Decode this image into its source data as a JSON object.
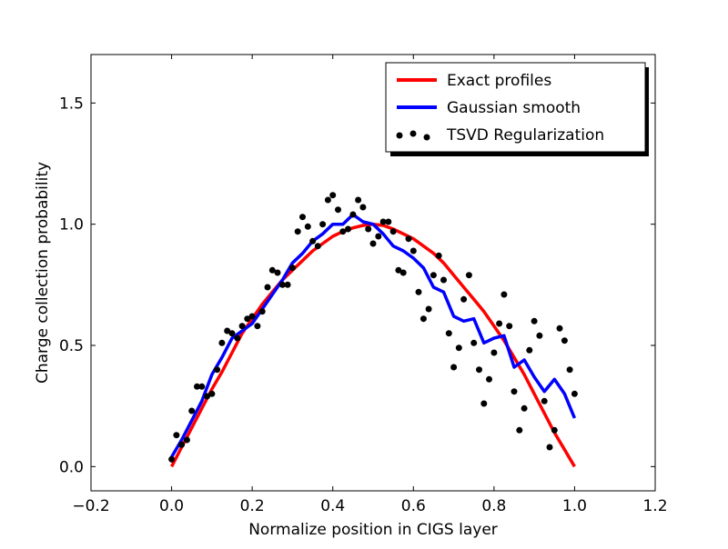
{
  "chart_data": {
    "type": "line",
    "xlabel": "Normalize position in CIGS layer",
    "ylabel": "Charge collection probability",
    "xlim": [
      -0.2,
      1.2
    ],
    "ylim": [
      -0.1,
      1.7
    ],
    "xticks": [
      -0.2,
      0.0,
      0.2,
      0.4,
      0.6,
      0.8,
      1.0,
      1.2
    ],
    "xtick_labels": [
      "−0.2",
      "0.0",
      "0.2",
      "0.4",
      "0.6",
      "0.8",
      "1.0",
      "1.2"
    ],
    "yticks": [
      0.0,
      0.5,
      1.0,
      1.5
    ],
    "ytick_labels": [
      "0.0",
      "0.5",
      "1.0",
      "1.5"
    ],
    "grid": false,
    "legend_position": "top-right",
    "series": [
      {
        "name": "Exact profiles",
        "kind": "line",
        "color": "#ff0000",
        "x": [
          0.0,
          0.025,
          0.05,
          0.075,
          0.1,
          0.125,
          0.15,
          0.175,
          0.2,
          0.225,
          0.25,
          0.275,
          0.3,
          0.325,
          0.35,
          0.375,
          0.4,
          0.425,
          0.45,
          0.475,
          0.5,
          0.525,
          0.55,
          0.575,
          0.6,
          0.625,
          0.65,
          0.675,
          0.7,
          0.725,
          0.75,
          0.775,
          0.8,
          0.825,
          0.85,
          0.875,
          0.9,
          0.925,
          0.95,
          0.975,
          1.0
        ],
        "y": [
          0.0,
          0.08,
          0.16,
          0.24,
          0.32,
          0.39,
          0.47,
          0.55,
          0.61,
          0.67,
          0.72,
          0.77,
          0.81,
          0.85,
          0.89,
          0.92,
          0.95,
          0.97,
          0.985,
          0.995,
          1.0,
          0.995,
          0.98,
          0.96,
          0.94,
          0.91,
          0.88,
          0.84,
          0.79,
          0.74,
          0.69,
          0.64,
          0.58,
          0.52,
          0.45,
          0.38,
          0.3,
          0.22,
          0.14,
          0.07,
          0.0
        ]
      },
      {
        "name": "Gaussian smooth",
        "kind": "line",
        "color": "#0000ff",
        "x": [
          0.0,
          0.025,
          0.05,
          0.075,
          0.1,
          0.125,
          0.15,
          0.175,
          0.2,
          0.225,
          0.25,
          0.275,
          0.3,
          0.325,
          0.35,
          0.375,
          0.4,
          0.425,
          0.45,
          0.475,
          0.5,
          0.525,
          0.55,
          0.575,
          0.6,
          0.625,
          0.65,
          0.675,
          0.7,
          0.725,
          0.75,
          0.775,
          0.8,
          0.825,
          0.85,
          0.875,
          0.9,
          0.925,
          0.95,
          0.975,
          1.0
        ],
        "y": [
          0.04,
          0.11,
          0.19,
          0.27,
          0.38,
          0.45,
          0.53,
          0.56,
          0.59,
          0.65,
          0.71,
          0.77,
          0.84,
          0.88,
          0.93,
          0.96,
          1.0,
          1.0,
          1.04,
          1.01,
          1.0,
          0.96,
          0.91,
          0.89,
          0.86,
          0.82,
          0.74,
          0.72,
          0.62,
          0.6,
          0.61,
          0.51,
          0.53,
          0.54,
          0.41,
          0.44,
          0.37,
          0.31,
          0.36,
          0.3,
          0.2
        ]
      },
      {
        "name": "TSVD Regularization",
        "kind": "scatter",
        "color": "#000000",
        "x": [
          0.0,
          0.012,
          0.025,
          0.038,
          0.05,
          0.063,
          0.075,
          0.088,
          0.1,
          0.113,
          0.125,
          0.138,
          0.15,
          0.163,
          0.175,
          0.188,
          0.2,
          0.213,
          0.225,
          0.238,
          0.25,
          0.263,
          0.275,
          0.288,
          0.3,
          0.313,
          0.325,
          0.338,
          0.35,
          0.363,
          0.375,
          0.388,
          0.4,
          0.413,
          0.425,
          0.438,
          0.45,
          0.463,
          0.475,
          0.488,
          0.5,
          0.513,
          0.525,
          0.538,
          0.55,
          0.563,
          0.575,
          0.588,
          0.6,
          0.613,
          0.625,
          0.638,
          0.65,
          0.663,
          0.675,
          0.688,
          0.7,
          0.713,
          0.725,
          0.738,
          0.75,
          0.763,
          0.775,
          0.788,
          0.8,
          0.813,
          0.825,
          0.838,
          0.85,
          0.863,
          0.875,
          0.888,
          0.9,
          0.913,
          0.925,
          0.938,
          0.95,
          0.963,
          0.975,
          0.988,
          1.0
        ],
        "y": [
          0.03,
          0.13,
          0.09,
          0.11,
          0.23,
          0.33,
          0.33,
          0.29,
          0.3,
          0.4,
          0.51,
          0.56,
          0.55,
          0.53,
          0.58,
          0.61,
          0.62,
          0.58,
          0.64,
          0.74,
          0.81,
          0.8,
          0.75,
          0.75,
          0.82,
          0.97,
          1.03,
          0.99,
          0.93,
          0.91,
          1.0,
          1.1,
          1.12,
          1.06,
          0.97,
          0.98,
          1.04,
          1.1,
          1.07,
          0.98,
          0.92,
          0.95,
          1.01,
          1.01,
          0.97,
          0.81,
          0.8,
          0.94,
          0.89,
          0.72,
          0.61,
          0.65,
          0.79,
          0.87,
          0.77,
          0.55,
          0.41,
          0.49,
          0.69,
          0.79,
          0.51,
          0.4,
          0.26,
          0.36,
          0.47,
          0.59,
          0.71,
          0.58,
          0.31,
          0.15,
          0.24,
          0.48,
          0.6,
          0.54,
          0.27,
          0.08,
          0.15,
          0.57,
          0.52,
          0.4,
          0.3
        ]
      }
    ]
  }
}
